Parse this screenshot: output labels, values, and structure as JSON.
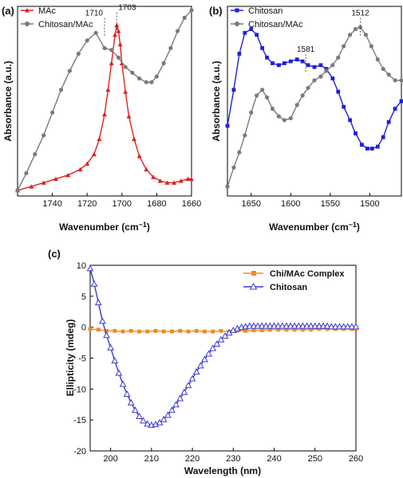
{
  "chart_data": [
    {
      "panel": "(a)",
      "type": "line",
      "xlabel": "Wavenumber (cm",
      "xlabel_sup": "−1",
      "xlabel_end": ")",
      "ylabel": "Absorbance (a.u.)",
      "xlim": [
        1760,
        1660
      ],
      "ylim": [
        0,
        1
      ],
      "xticks": [
        1740,
        1720,
        1700,
        1680,
        1660
      ],
      "legend_position": "top-left",
      "annotations": [
        {
          "x": 1710,
          "y": 0.93,
          "label": "1710"
        },
        {
          "x": 1703,
          "y": 0.96,
          "label": "1703"
        }
      ],
      "series": [
        {
          "name": "MAc",
          "color": "#e02020",
          "marker": "triangle",
          "x": [
            1760,
            1752,
            1745,
            1738,
            1731,
            1724,
            1720,
            1716,
            1713,
            1710,
            1708,
            1706,
            1704,
            1703,
            1702,
            1701,
            1700,
            1698,
            1696,
            1693,
            1690,
            1686,
            1682,
            1678,
            1674,
            1670,
            1666,
            1662,
            1660
          ],
          "y": [
            0.03,
            0.05,
            0.07,
            0.09,
            0.11,
            0.14,
            0.17,
            0.22,
            0.3,
            0.43,
            0.56,
            0.7,
            0.85,
            0.9,
            0.87,
            0.8,
            0.7,
            0.55,
            0.42,
            0.3,
            0.21,
            0.14,
            0.1,
            0.08,
            0.07,
            0.07,
            0.08,
            0.09,
            0.09
          ]
        },
        {
          "name": "Chitosan/MAc",
          "color": "#7a7a7a",
          "marker": "circle",
          "x": [
            1760,
            1755,
            1750,
            1745,
            1740,
            1735,
            1730,
            1725,
            1720,
            1715,
            1710,
            1706,
            1702,
            1698,
            1694,
            1690,
            1686,
            1683,
            1680,
            1676,
            1672,
            1668,
            1664,
            1660
          ],
          "y": [
            0.03,
            0.12,
            0.22,
            0.32,
            0.44,
            0.56,
            0.66,
            0.75,
            0.82,
            0.86,
            0.78,
            0.77,
            0.73,
            0.68,
            0.65,
            0.62,
            0.6,
            0.6,
            0.63,
            0.7,
            0.78,
            0.87,
            0.94,
            0.98
          ]
        }
      ]
    },
    {
      "panel": "(b)",
      "type": "line",
      "xlabel": "Wavenumber (cm",
      "xlabel_sup": "−1",
      "xlabel_end": ")",
      "ylabel": "Absorbance (a.u.)",
      "xlim": [
        1680,
        1460
      ],
      "ylim": [
        0,
        1
      ],
      "xticks": [
        1650,
        1600,
        1550,
        1500
      ],
      "legend_position": "top-left",
      "annotations": [
        {
          "x": 1581,
          "y": 0.74,
          "label": "1581"
        },
        {
          "x": 1512,
          "y": 0.93,
          "label": "1512"
        }
      ],
      "series": [
        {
          "name": "Chitosan",
          "color": "#2020d8",
          "marker": "square",
          "x": [
            1680,
            1672,
            1665,
            1658,
            1650,
            1643,
            1636,
            1630,
            1623,
            1615,
            1608,
            1600,
            1592,
            1585,
            1578,
            1570,
            1562,
            1555,
            1547,
            1540,
            1533,
            1525,
            1518,
            1510,
            1503,
            1497,
            1490,
            1483,
            1476,
            1468,
            1460
          ],
          "y": [
            0.37,
            0.56,
            0.75,
            0.86,
            0.88,
            0.85,
            0.78,
            0.73,
            0.7,
            0.69,
            0.7,
            0.71,
            0.72,
            0.71,
            0.69,
            0.68,
            0.69,
            0.67,
            0.62,
            0.55,
            0.47,
            0.4,
            0.33,
            0.27,
            0.25,
            0.25,
            0.26,
            0.31,
            0.39,
            0.46,
            0.5
          ]
        },
        {
          "name": "Chitosan/MAc",
          "color": "#7a7a7a",
          "marker": "circle",
          "x": [
            1680,
            1672,
            1665,
            1658,
            1650,
            1643,
            1636,
            1630,
            1623,
            1615,
            1608,
            1600,
            1592,
            1585,
            1578,
            1570,
            1562,
            1555,
            1547,
            1540,
            1533,
            1525,
            1518,
            1512,
            1505,
            1498,
            1490,
            1483,
            1476,
            1468,
            1460
          ],
          "y": [
            0.05,
            0.15,
            0.23,
            0.32,
            0.44,
            0.53,
            0.56,
            0.52,
            0.46,
            0.42,
            0.4,
            0.41,
            0.48,
            0.53,
            0.57,
            0.61,
            0.63,
            0.66,
            0.69,
            0.73,
            0.79,
            0.85,
            0.88,
            0.89,
            0.85,
            0.79,
            0.72,
            0.67,
            0.64,
            0.61,
            0.61
          ]
        }
      ]
    },
    {
      "panel": "(c)",
      "type": "line",
      "xlabel": "Wavelength (nm)",
      "ylabel": "Ellipticity (mdeg)",
      "xlim": [
        195,
        260
      ],
      "ylim": [
        -20,
        10
      ],
      "xticks": [
        200,
        210,
        220,
        230,
        240,
        250,
        260
      ],
      "yticks": [
        10,
        5,
        0,
        -5,
        -10,
        -15,
        -20
      ],
      "legend_position": "top-right",
      "series": [
        {
          "name": "Chi/MAc Complex",
          "color": "#f08a1e",
          "marker": "square",
          "x": [
            195,
            197,
            199,
            201,
            203,
            205,
            207,
            209,
            211,
            213,
            215,
            217,
            219,
            221,
            223,
            225,
            227,
            229,
            231,
            233,
            235,
            237,
            239,
            241,
            243,
            245,
            247,
            249,
            251,
            253,
            255,
            257,
            259,
            260
          ],
          "y": [
            -0.3,
            -0.4,
            -0.6,
            -0.6,
            -0.7,
            -0.6,
            -0.7,
            -0.7,
            -0.6,
            -0.7,
            -0.7,
            -0.6,
            -0.7,
            -0.6,
            -0.7,
            -0.7,
            -0.6,
            -0.7,
            -0.6,
            -0.6,
            -0.5,
            -0.5,
            -0.4,
            -0.4,
            -0.4,
            -0.4,
            -0.4,
            -0.4,
            -0.3,
            -0.3,
            -0.3,
            -0.3,
            -0.3,
            -0.3
          ]
        },
        {
          "name": "Chitosan",
          "color": "#3a3ad0",
          "marker": "open-triangle",
          "x": [
            195,
            196,
            197,
            198,
            199,
            200,
            201,
            202,
            203,
            204,
            205,
            206,
            207,
            208,
            209,
            210,
            211,
            212,
            213,
            214,
            215,
            216,
            217,
            218,
            219,
            220,
            221,
            222,
            223,
            224,
            225,
            226,
            227,
            228,
            229,
            230,
            231,
            232,
            233,
            234,
            235,
            236,
            237,
            238,
            239,
            240,
            241,
            242,
            243,
            244,
            245,
            246,
            247,
            248,
            249,
            250,
            251,
            252,
            253,
            254,
            255,
            256,
            257,
            258,
            259,
            260
          ],
          "y": [
            9.5,
            7.0,
            4.0,
            1.0,
            -1.3,
            -3.3,
            -5.4,
            -7.4,
            -9.2,
            -10.8,
            -12.2,
            -13.4,
            -14.4,
            -15.1,
            -15.6,
            -15.8,
            -15.7,
            -15.4,
            -14.9,
            -14.2,
            -13.4,
            -12.5,
            -11.5,
            -10.5,
            -9.4,
            -8.3,
            -7.2,
            -6.2,
            -5.2,
            -4.3,
            -3.4,
            -2.7,
            -2.0,
            -1.4,
            -0.9,
            -0.5,
            -0.2,
            0.0,
            0.1,
            0.2,
            0.2,
            0.2,
            0.2,
            0.2,
            0.2,
            0.2,
            0.2,
            0.2,
            0.2,
            0.2,
            0.2,
            0.2,
            0.2,
            0.2,
            0.2,
            0.2,
            0.2,
            0.2,
            0.2,
            0.1,
            0.1,
            0.1,
            0.1,
            0.1,
            0.1,
            0.1
          ]
        }
      ]
    }
  ]
}
